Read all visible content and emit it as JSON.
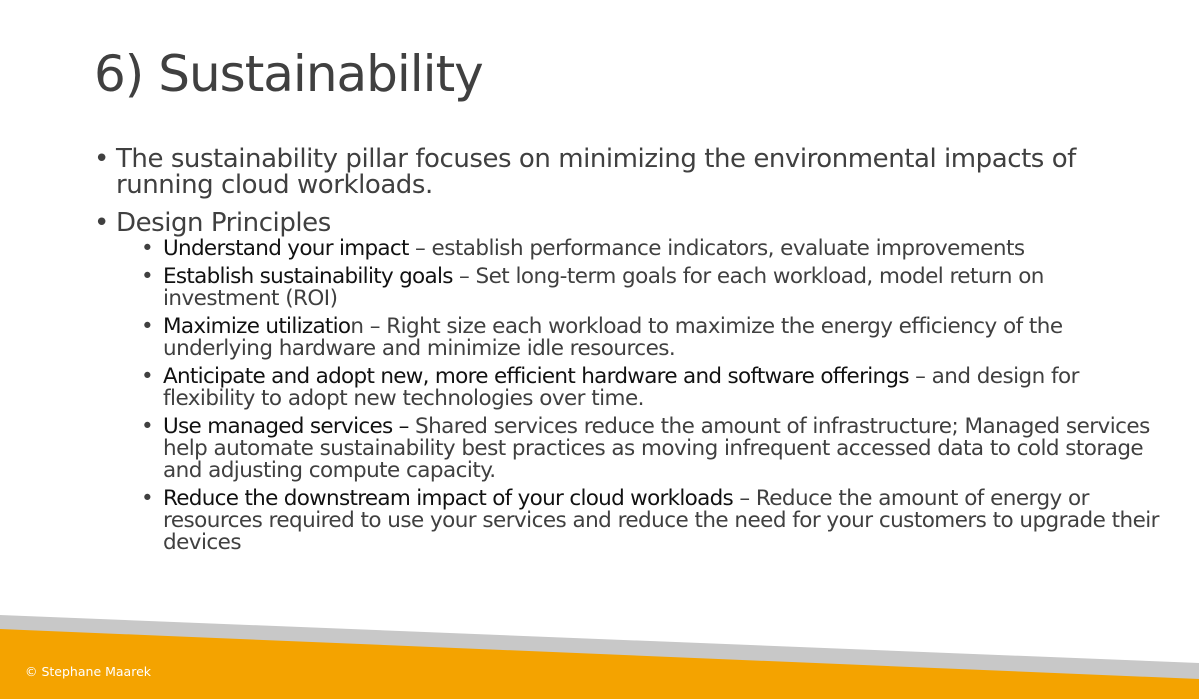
{
  "slide": {
    "title": "6) Sustainability",
    "bullets": [
      {
        "text": "The sustainability pillar focuses on minimizing the environmental impacts of running cloud workloads."
      },
      {
        "text": "Design Principles"
      }
    ],
    "principles": [
      {
        "bold": "Understand your impact",
        "rest": " – establish performance indicators, evaluate improvements"
      },
      {
        "bold": "Establish sustainability goals",
        "rest": " – Set long-term goals for each workload, model return on investment (ROI)"
      },
      {
        "bold": "Maximize utilizatio",
        "rest": "n – Right size each workload to maximize the energy efficiency of the underlying hardware and minimize idle resources."
      },
      {
        "bold": "Anticipate and adopt new, more efficient hardware and software offerings",
        "rest": " – and design for flexibility to adopt new technologies over time."
      },
      {
        "bold": "Use managed services –",
        "rest": " Shared services reduce the amount of infrastructure; Managed services help automate sustainability best practices as moving infrequent accessed data to cold storage and adjusting compute capacity."
      },
      {
        "bold": "Reduce the downstream impact of your cloud workloads",
        "rest": " – Reduce the amount of energy or resources required to use your services and reduce the need for your customers to upgrade their devices"
      }
    ]
  },
  "footer": {
    "copyright": "© Stephane Maarek"
  },
  "colors": {
    "accent_orange": "#f4a300",
    "band_gray": "#c8c8c8",
    "text_gray": "#404040"
  }
}
